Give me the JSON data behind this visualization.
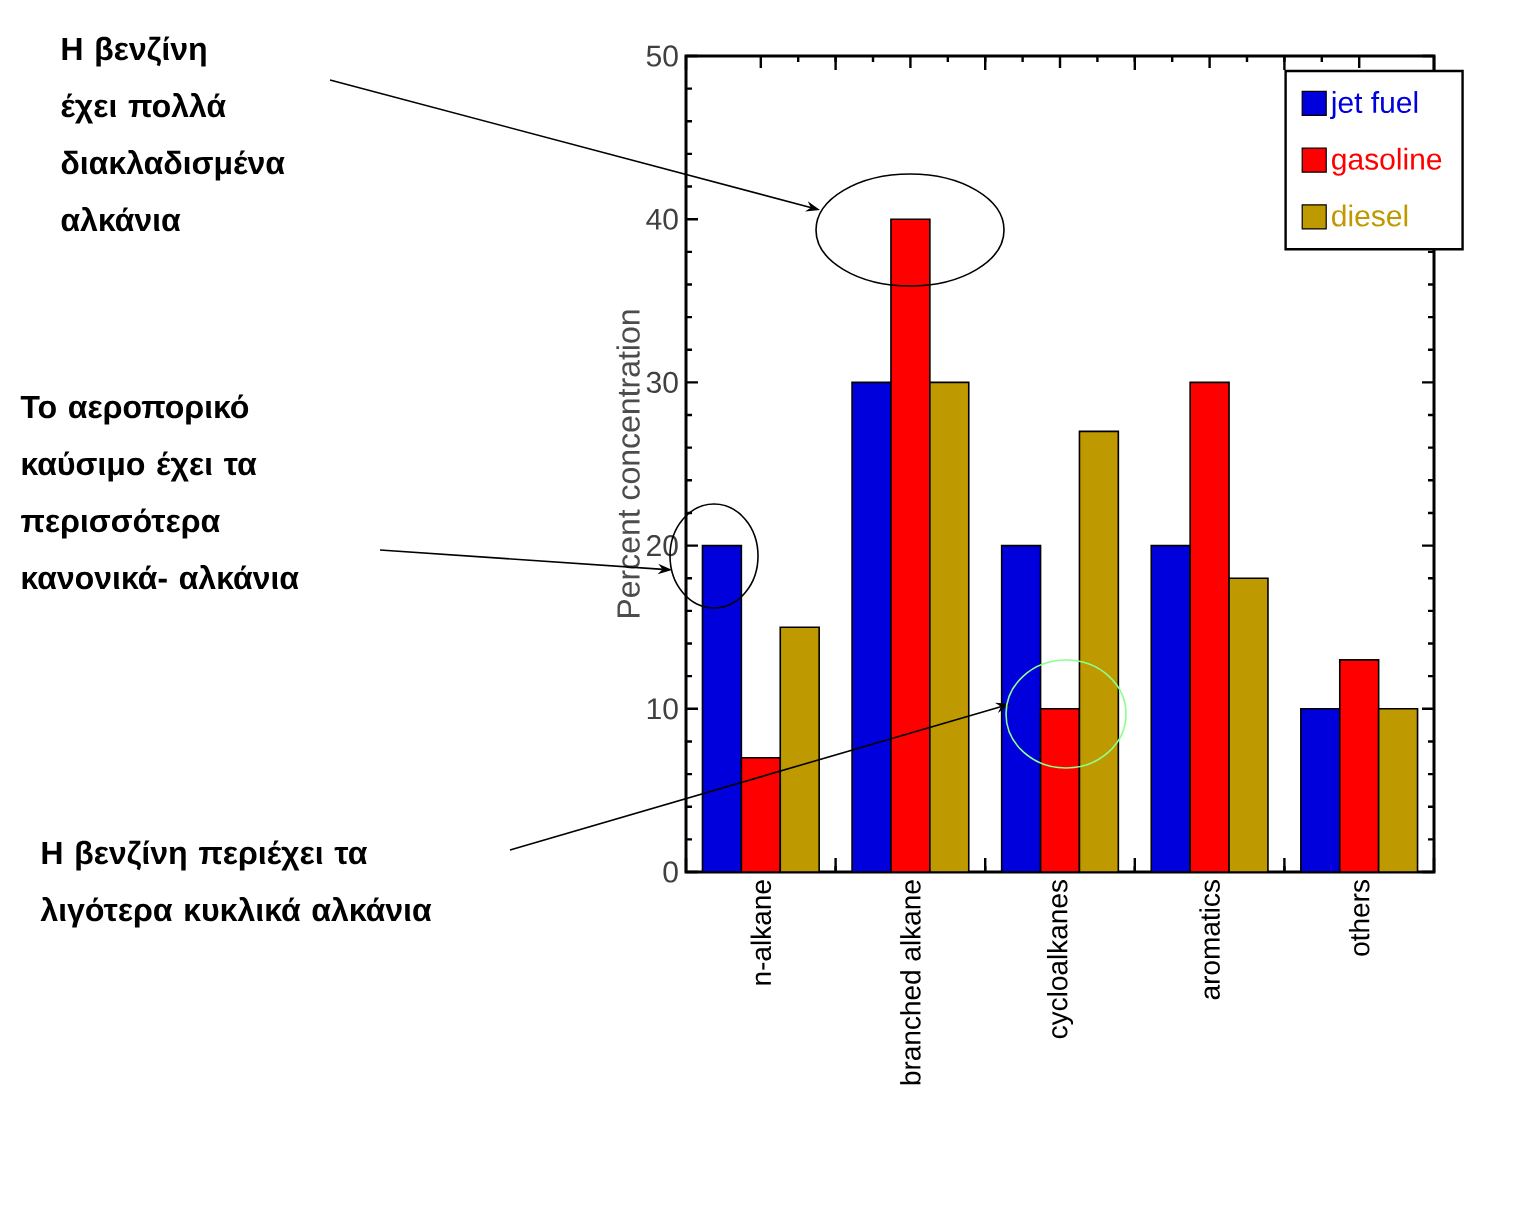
{
  "chart_data": {
    "type": "bar",
    "ylabel": "Percent concentration",
    "categories": [
      "n-alkane",
      "branched alkane",
      "cycloalkanes",
      "aromatics",
      "others"
    ],
    "series": [
      {
        "name": "jet fuel",
        "color": "#0000dd",
        "values": [
          20,
          30,
          20,
          20,
          10
        ]
      },
      {
        "name": "gasoline",
        "color": "#ff0000",
        "values": [
          7,
          40,
          10,
          30,
          13
        ]
      },
      {
        "name": "diesel",
        "color": "#bf9900",
        "values": [
          15,
          30,
          27,
          18,
          10
        ]
      }
    ],
    "ylim": [
      0,
      50
    ],
    "yticks": [
      0,
      10,
      20,
      30,
      40,
      50
    ],
    "legend": "top right",
    "grid": false,
    "annotations": [
      "Η βενζίνη έχει πολλά διακλαδισμένα αλκάνια",
      "Το αεροπορικό καύσιμο έχει τα περισσότερα κανονικά- αλκάνια",
      "Η βενζίνη περιέχει τα λιγότερα κυκλικά αλκάνια"
    ]
  }
}
